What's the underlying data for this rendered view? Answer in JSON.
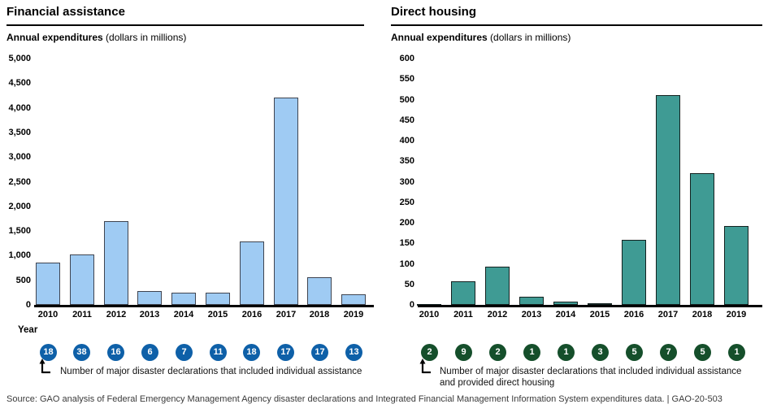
{
  "footer": {
    "source_line": "Source: GAO analysis of Federal Emergency Management Agency disaster declarations and Integrated Financial Management Information System expenditures data.  |  GAO-20-503"
  },
  "chart_data": [
    {
      "type": "bar",
      "title": "Financial assistance",
      "subtitle_bold": "Annual expenditures",
      "subtitle_rest": " (dollars in millions)",
      "xlabel": "Year",
      "categories": [
        "2010",
        "2011",
        "2012",
        "2013",
        "2014",
        "2015",
        "2016",
        "2017",
        "2018",
        "2019"
      ],
      "values": [
        850,
        1020,
        1700,
        280,
        250,
        250,
        1280,
        4200,
        560,
        220
      ],
      "ylim": [
        0,
        5000
      ],
      "ystep": 500,
      "ytick_labels": [
        "5,000",
        "4,500",
        "4,000",
        "3,500",
        "3,000",
        "2,500",
        "2,000",
        "1,500",
        "1,000",
        "500",
        "0"
      ],
      "ytick_values": [
        5000,
        4500,
        4000,
        3500,
        3000,
        2500,
        2000,
        1500,
        1000,
        500,
        0
      ],
      "grid": false,
      "bar_fill": "#9FCBF3",
      "bar_border": "#3f4450",
      "badge_values": [
        "18",
        "38",
        "16",
        "6",
        "7",
        "11",
        "18",
        "17",
        "17",
        "13"
      ],
      "badge_color": "#0E60A8",
      "caption_lines": [
        "Number of major disaster declarations that included individual assistance"
      ]
    },
    {
      "type": "bar",
      "title": "Direct housing",
      "subtitle_bold": "Annual expenditures",
      "subtitle_rest": " (dollars in millions)",
      "xlabel": "",
      "categories": [
        "2010",
        "2011",
        "2012",
        "2013",
        "2014",
        "2015",
        "2016",
        "2017",
        "2018",
        "2019"
      ],
      "values": [
        2,
        57,
        93,
        20,
        8,
        3,
        158,
        510,
        320,
        193
      ],
      "ylim": [
        0,
        600
      ],
      "ystep": 50,
      "ytick_labels": [
        "600",
        "550",
        "500",
        "450",
        "400",
        "350",
        "300",
        "250",
        "200",
        "150",
        "100",
        "50",
        "0"
      ],
      "ytick_values": [
        600,
        550,
        500,
        450,
        400,
        350,
        300,
        250,
        200,
        150,
        100,
        50,
        0
      ],
      "grid": false,
      "bar_fill": "#3F9B94",
      "bar_border": "#142220",
      "badge_values": [
        "2",
        "9",
        "2",
        "1",
        "1",
        "3",
        "5",
        "7",
        "5",
        "1"
      ],
      "badge_color": "#154F2B",
      "caption_lines": [
        "Number of major disaster declarations that included individual assistance",
        "and provided direct housing"
      ]
    }
  ]
}
